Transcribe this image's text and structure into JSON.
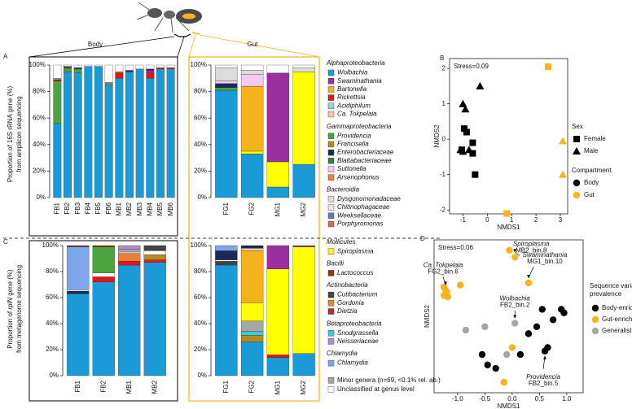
{
  "chart_data": [
    {
      "type": "stacked_bar",
      "panel": "A",
      "title": "Body",
      "y_label": [
        [
          "Proportion of 16S rRNA gene (%)"
        ],
        [
          "from amplicon sequencing"
        ]
      ],
      "categories": [
        "FB1",
        "FB2",
        "FB3",
        "FB4",
        "FB5",
        "FB6",
        "MB1",
        "MB2",
        "MB3",
        "MB4",
        "MB5",
        "MB6"
      ],
      "ylim": [
        0,
        100
      ],
      "yticks": [
        {
          "value": 0,
          "label": "0%"
        },
        {
          "value": 20,
          "label": "20%"
        },
        {
          "value": 40,
          "label": "40%"
        },
        {
          "value": 60,
          "label": "60%"
        },
        {
          "value": 80,
          "label": "80%"
        },
        {
          "value": 100,
          "label": "100%"
        }
      ],
      "series": [
        {
          "name": "Wolbachia",
          "values": [
            56,
            95,
            94,
            99,
            99,
            85,
            90,
            95,
            97,
            90,
            97,
            97
          ]
        },
        {
          "name": "Providencia",
          "values": [
            32,
            2,
            3,
            0,
            0,
            0,
            0,
            0,
            0,
            0,
            0,
            0
          ]
        },
        {
          "name": "Rickettsia",
          "values": [
            1,
            0,
            0,
            0,
            0,
            0,
            4,
            0,
            0,
            4,
            1,
            1
          ]
        },
        {
          "name": "Swaminathania",
          "values": [
            0,
            0,
            0,
            0,
            0,
            0,
            0,
            0,
            0,
            2,
            0,
            0
          ]
        },
        {
          "name": "Francisella",
          "values": [
            0,
            1,
            0,
            0,
            0,
            1,
            1,
            0,
            0,
            0,
            0,
            0
          ]
        },
        {
          "name": "Enterobacteriaceae",
          "values": [
            0,
            1,
            1,
            0,
            0,
            0,
            0,
            1,
            0,
            1,
            0,
            0
          ]
        },
        {
          "name": "Minor genera (n=69, <0.1% rel. ab.)",
          "values": [
            1,
            0,
            0,
            0,
            0,
            1,
            0,
            0,
            0,
            0,
            0,
            0
          ]
        },
        {
          "name": "Unclassified at genus level",
          "values": [
            10,
            1,
            2,
            1,
            1,
            13,
            5,
            4,
            3,
            3,
            2,
            2
          ]
        }
      ]
    },
    {
      "type": "stacked_bar",
      "title": "Gut",
      "categories": [
        "FG1",
        "FG2",
        "MG1",
        "MG2"
      ],
      "ylim": [
        0,
        100
      ],
      "yticks": [
        {
          "value": 0,
          "label": "0%"
        },
        {
          "value": 20,
          "label": "20%"
        },
        {
          "value": 40,
          "label": "40%"
        },
        {
          "value": 60,
          "label": "60%"
        },
        {
          "value": 80,
          "label": "80%"
        },
        {
          "value": 100,
          "label": "100%"
        }
      ],
      "series": [
        {
          "name": "Wolbachia",
          "values": [
            81,
            33,
            8,
            25
          ]
        },
        {
          "name": "Spiroplasma",
          "values": [
            0,
            2,
            19,
            70
          ]
        },
        {
          "name": "Providencia",
          "values": [
            2,
            0,
            0,
            0
          ]
        },
        {
          "name": "Enterobacteriaceae",
          "values": [
            3,
            0,
            0,
            0
          ]
        },
        {
          "name": "Bartonella",
          "values": [
            0,
            49,
            0,
            0
          ]
        },
        {
          "name": "Swaminathania",
          "values": [
            0,
            0,
            67,
            0
          ]
        },
        {
          "name": "Suttonella",
          "values": [
            2,
            9,
            0,
            0
          ]
        },
        {
          "name": "Dysgonomonadaceae",
          "values": [
            10,
            3,
            0,
            3
          ]
        },
        {
          "name": "Unclassified at genus level",
          "values": [
            2,
            4,
            6,
            2
          ]
        }
      ]
    },
    {
      "type": "stacked_bar",
      "panel": "C",
      "y_label": [
        [
          "Proportion of ",
          "rplN",
          " gene (%)"
        ],
        [
          "from metagenome sequencing"
        ]
      ],
      "categories": [
        "FB1",
        "FB2",
        "MB1",
        "MB2"
      ],
      "ylim": [
        0,
        100
      ],
      "yticks": [
        {
          "value": 0,
          "label": "0%"
        },
        {
          "value": 20,
          "label": "20%"
        },
        {
          "value": 40,
          "label": "40%"
        },
        {
          "value": 60,
          "label": "60%"
        },
        {
          "value": 80,
          "label": "80%"
        },
        {
          "value": 100,
          "label": "100%"
        }
      ],
      "series": [
        {
          "name": "Wolbachia",
          "values": [
            63,
            72,
            85,
            87
          ]
        },
        {
          "name": "Enterobacteriaceae",
          "values": [
            2,
            0,
            0,
            0
          ]
        },
        {
          "name": "Rickettsia",
          "values": [
            0,
            4,
            3,
            2
          ]
        },
        {
          "name": "Arsenophonus",
          "values": [
            0,
            0,
            6,
            0
          ]
        },
        {
          "name": "Francisella",
          "values": [
            0,
            0,
            0,
            4
          ]
        },
        {
          "name": "Unclassified at genus level",
          "values": [
            1,
            3,
            1,
            3
          ]
        },
        {
          "name": "Chlamydia",
          "values": [
            33,
            0,
            0,
            0
          ]
        },
        {
          "name": "Providencia",
          "values": [
            0,
            20,
            0,
            0
          ]
        },
        {
          "name": "Minor genera (n=69, <0.1% rel. ab.)",
          "values": [
            0,
            0,
            2,
            0
          ]
        },
        {
          "name": "Neisseriaceae",
          "values": [
            0,
            0,
            3,
            0
          ]
        },
        {
          "name": "Cutibacterium",
          "values": [
            0,
            0,
            0,
            4
          ]
        },
        {
          "name": "Lactococcus",
          "values": [
            1,
            1,
            0,
            0
          ]
        }
      ]
    },
    {
      "type": "stacked_bar",
      "categories": [
        "FG1",
        "FG2",
        "MG1",
        "MG2"
      ],
      "ylim": [
        0,
        100
      ],
      "yticks": [
        {
          "value": 0,
          "label": "0%"
        },
        {
          "value": 20,
          "label": "20%"
        },
        {
          "value": 40,
          "label": "40%"
        },
        {
          "value": 60,
          "label": "60%"
        },
        {
          "value": 80,
          "label": "80%"
        },
        {
          "value": 100,
          "label": "100%"
        }
      ],
      "series": [
        {
          "name": "Wolbachia",
          "values": [
            85,
            26,
            14,
            17
          ]
        },
        {
          "name": "Cutibacterium",
          "values": [
            3,
            0,
            0,
            0
          ]
        },
        {
          "name": "Rickettsia",
          "values": [
            0,
            0,
            2,
            0
          ]
        },
        {
          "name": "Unclassified at genus level",
          "values": [
            1,
            0,
            0,
            0
          ]
        },
        {
          "name": "Francisella",
          "values": [
            0,
            5,
            0,
            0
          ]
        },
        {
          "name": "Snodgrassella",
          "values": [
            0,
            3,
            0,
            0
          ]
        },
        {
          "name": "Minor genera (n=69, <0.1% rel. ab.)",
          "values": [
            0,
            8,
            0,
            0
          ]
        },
        {
          "name": "Spiroplasma",
          "values": [
            0,
            14,
            66,
            82
          ]
        },
        {
          "name": "Bartonella",
          "values": [
            0,
            40,
            0,
            0
          ]
        },
        {
          "name": "Ca. Tokpelaia",
          "values": [
            0,
            2,
            0,
            0
          ]
        },
        {
          "name": "Enterobacteriaceae",
          "values": [
            7,
            2,
            0,
            0
          ]
        },
        {
          "name": "Swaminathania",
          "values": [
            0,
            0,
            18,
            1
          ]
        },
        {
          "name": "Chlamydia",
          "values": [
            4,
            0,
            0,
            0
          ]
        }
      ]
    },
    {
      "type": "scatter",
      "panel": "B",
      "annotation": "Stress=0.09",
      "x_label": "NMDS1",
      "y_label": "NMDS2",
      "xlim": [
        -1.55,
        3.3
      ],
      "ylim": [
        -2.11,
        2.28
      ],
      "xticks": [
        -1,
        0,
        1,
        2,
        3
      ],
      "yticks": [
        -2,
        -1,
        0,
        1,
        2
      ],
      "points": {
        "x": [
          -0.95,
          -0.85,
          -0.6,
          -0.5,
          -1.05,
          -0.6,
          -1.0,
          -0.9,
          -0.3,
          -1.1,
          -1.0,
          -0.75,
          2.5,
          0.8,
          3.1,
          3.1
        ],
        "y": [
          0.3,
          0.2,
          -0.4,
          -1.0,
          -0.3,
          -0.1,
          1.0,
          0.85,
          1.5,
          -0.3,
          -0.35,
          -0.3,
          2.05,
          -2.1,
          -0.05,
          -1.0
        ],
        "sex": [
          "Female",
          "Female",
          "Female",
          "Female",
          "Female",
          "Female",
          "Male",
          "Male",
          "Male",
          "Male",
          "Male",
          "Male",
          "Female",
          "Female",
          "Male",
          "Male"
        ],
        "compartment": [
          "Body",
          "Body",
          "Body",
          "Body",
          "Body",
          "Body",
          "Body",
          "Body",
          "Body",
          "Body",
          "Body",
          "Body",
          "Gut",
          "Gut",
          "Gut",
          "Gut"
        ]
      },
      "legends": [
        {
          "title": "Sex",
          "items": [
            {
              "name": "Female",
              "shape": "square"
            },
            {
              "name": "Male",
              "shape": "triangle"
            }
          ]
        },
        {
          "title": "Compartment",
          "items": [
            {
              "name": "Body",
              "color": "#000000"
            },
            {
              "name": "Gut",
              "color": "#f5b51b"
            }
          ]
        }
      ]
    },
    {
      "type": "scatter",
      "panel": "D",
      "annotation": "Stress=0.06",
      "x_label": "NMDS1",
      "y_label": "NMDS2",
      "xlim": [
        -1.43,
        1.3
      ],
      "ylim": [
        -1.1,
        1.1
      ],
      "xticks": [
        {
          "value": -1,
          "label": "-1.0"
        },
        {
          "value": -0.5,
          "label": "-0.5"
        },
        {
          "value": 0,
          "label": "0.0"
        },
        {
          "value": 0.5,
          "label": "0.5"
        },
        {
          "value": 1,
          "label": "1.0"
        }
      ],
      "legend_title": [
        "Sequence variants",
        "prevalence"
      ],
      "series": [
        {
          "name": "Body-enriched",
          "color": "#000000",
          "x": [
            0.55,
            0.75,
            0.9,
            0.95,
            0.45,
            0.3,
            0.65,
            0.6,
            -0.55,
            -0.45,
            -0.3,
            0.15
          ],
          "y": [
            0.1,
            -0.05,
            0.1,
            0.05,
            -0.15,
            -0.25,
            -0.45,
            -0.5,
            -0.55,
            -0.7,
            -0.75,
            -0.55
          ]
        },
        {
          "name": "Gut-enriched",
          "color": "#f5b51b",
          "x": [
            -1.25,
            -1.2,
            -1.25,
            -1.18,
            -1.22,
            -0.95,
            -0.05,
            0.05,
            0.3,
            0.0,
            -0.15
          ],
          "y": [
            0.42,
            0.35,
            0.3,
            0.28,
            0.38,
            0.45,
            0.95,
            0.85,
            0.48,
            -0.45,
            -0.95
          ]
        },
        {
          "name": "Generalist",
          "color": "#a6a6a6",
          "x": [
            -0.85,
            -0.5,
            0.05,
            -0.1
          ],
          "y": [
            -0.2,
            -0.15,
            -0.1,
            -0.55
          ]
        }
      ],
      "annotations": [
        {
          "taxon": "Spiroplasma",
          "bin": "MB2_bin.8",
          "x": 0.05,
          "y": 0.85
        },
        {
          "taxon": "Swaminathania",
          "bin": "MG1_bin.10",
          "x": 0.3,
          "y": 0.48
        },
        {
          "taxon": "Ca. Tokpelaia",
          "bin": "FG2_bin.6",
          "x": -1.22,
          "y": 0.38
        },
        {
          "taxon": "Wolbachia",
          "bin": "FB2_bin.2",
          "x": 0.05,
          "y": -0.1
        },
        {
          "taxon": "Providencia",
          "bin": "FB2_bin.5",
          "x": 0.6,
          "y": -0.5
        }
      ]
    }
  ],
  "legend": {
    "groups": [
      {
        "title": "Alphaproteobacteria",
        "items": [
          {
            "name": "Wolbachia",
            "color": "#1a9ad6"
          },
          {
            "name": "Swaminathania",
            "color": "#9c2ea0"
          },
          {
            "name": "Bartonella",
            "color": "#f6b21a"
          },
          {
            "name": "Rickettsia",
            "color": "#e5141b"
          },
          {
            "name": "Acidiphilum",
            "color": "#90dcc4"
          },
          {
            "name": "Ca. Tokpelaia",
            "color": "#f5c7ae"
          }
        ]
      },
      {
        "title": "Gammaproteobacteria",
        "items": [
          {
            "name": "Providencia",
            "color": "#4aa540"
          },
          {
            "name": "Francisella",
            "color": "#b78a1c"
          },
          {
            "name": "Enterobacteriaceae",
            "color": "#1b2a57"
          },
          {
            "name": "Blattabacteriaceae",
            "color": "#3c7a4d"
          },
          {
            "name": "Suttonella",
            "color": "#f5c9f1"
          },
          {
            "name": "Arsenophonus",
            "color": "#ee7c3a"
          }
        ]
      },
      {
        "title": "Bacteroidia",
        "items": [
          {
            "name": "Dysgonomonadaceae",
            "color": "#dcdcdc"
          },
          {
            "name": "Chitinophagaceae",
            "color": "#f3e1d8"
          },
          {
            "name": "Weeksellaceae",
            "color": "#5b7fb3"
          },
          {
            "name": "Porphyromonas",
            "color": "#c8725f"
          }
        ]
      },
      {
        "title": "Mollicutes",
        "items": [
          {
            "name": "Spiroplasma",
            "color": "#ffff00"
          }
        ]
      },
      {
        "title": "Bacilli",
        "items": [
          {
            "name": "Lactococcus",
            "color": "#8a3a1a"
          }
        ]
      },
      {
        "title": "Actinobacteria",
        "items": [
          {
            "name": "Cutibacterium",
            "color": "#444444"
          },
          {
            "name": "Gordonia",
            "color": "#e68a2e"
          },
          {
            "name": "Dietzia",
            "color": "#c0272d"
          }
        ]
      },
      {
        "title": "Betaproteobacteria",
        "items": [
          {
            "name": "Snodgrassella",
            "color": "#34cfd5"
          },
          {
            "name": "Neisseriaceae",
            "color": "#b48bc8"
          }
        ]
      },
      {
        "title": "Chlamydia",
        "items": [
          {
            "name": "Chlamydia",
            "color": "#7ea6ea"
          }
        ]
      }
    ],
    "extra": [
      {
        "name": "Minor genera (n=69, <0.1% rel. ab.)",
        "color": "#a6a6a6"
      },
      {
        "name": "Unclassified at genus level",
        "color": "#ffffff"
      }
    ]
  }
}
